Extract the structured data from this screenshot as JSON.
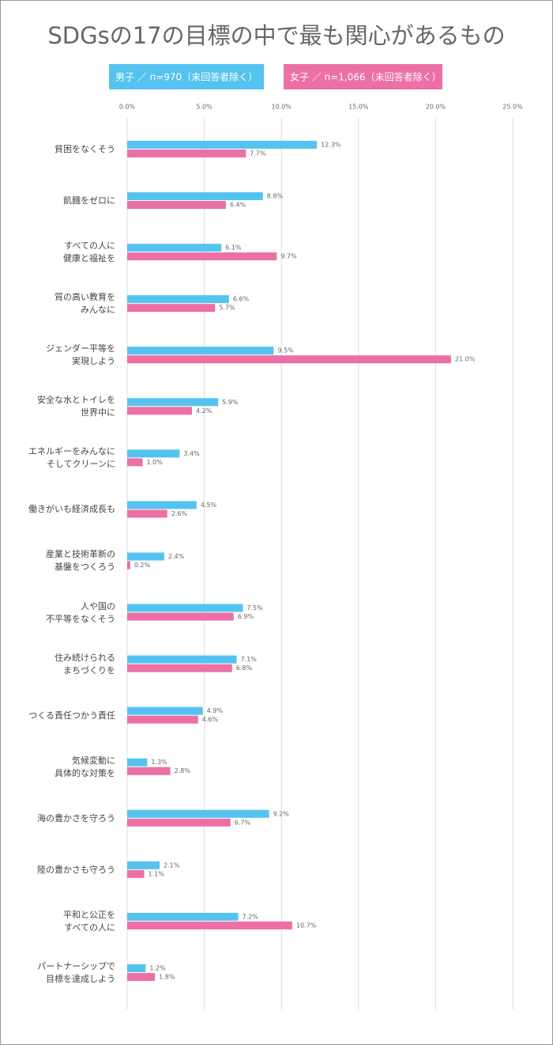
{
  "chart_data": {
    "type": "bar",
    "orientation": "horizontal",
    "title": "SDGsの17の目標の中で最も関心があるもの",
    "categories": [
      "貧困をなくそう",
      "飢餓をゼロに",
      "すべての人に\n健康と福祉を",
      "質の高い教育を\nみんなに",
      "ジェンダー平等を\n実現しよう",
      "安全な水とトイレを\n世界中に",
      "エネルギーをみんなに\nそしてクリーンに",
      "働きがいも経済成長も",
      "産業と技術革新の\n基盤をつくろう",
      "人や国の\n不平等をなくそう",
      "住み続けられる\nまちづくりを",
      "つくる責任つかう責任",
      "気候変動に\n具体的な対策を",
      "海の豊かさを守ろう",
      "陸の豊かさも守ろう",
      "平和と公正を\nすべての人に",
      "パートナーシップで\n目標を達成しよう"
    ],
    "series": [
      {
        "name": "男子 ／ n=970（未回答者除く）",
        "color": "#55c3f0",
        "values": [
          12.3,
          8.8,
          6.1,
          6.6,
          9.5,
          5.9,
          3.4,
          4.5,
          2.4,
          7.5,
          7.1,
          4.9,
          1.3,
          9.2,
          2.1,
          7.2,
          1.2
        ],
        "value_labels": [
          "12.3%",
          "8.8%",
          "6.1%",
          "6.6%",
          "9.5%",
          "5.9%",
          "3.4%",
          "4.5%",
          "2.4%",
          "7.5%",
          "7.1%",
          "4.9%",
          "1.3%",
          "9.2%",
          "2.1%",
          "7.2%",
          "1.2%"
        ]
      },
      {
        "name": "女子 ／ n=1,066（未回答者除く）",
        "color": "#ec6fa5",
        "values": [
          7.7,
          6.4,
          9.7,
          5.7,
          21.0,
          4.2,
          1.0,
          2.6,
          0.2,
          6.9,
          6.8,
          4.6,
          2.8,
          6.7,
          1.1,
          10.7,
          1.8
        ],
        "value_labels": [
          "7.7%",
          "6.4%",
          "9.7%",
          "5.7%",
          "21.0%",
          "4.2%",
          "1.0%",
          "2.6%",
          "0.2%",
          "6.9%",
          "6.8%",
          "4.6%",
          "2.8%",
          "6.7%",
          "1.1%",
          "10.7%",
          "1.8%"
        ]
      }
    ],
    "xlim": [
      0,
      25
    ],
    "xticks": [
      {
        "value": 0,
        "label": "0.0%"
      },
      {
        "value": 5,
        "label": "5.0%"
      },
      {
        "value": 10,
        "label": "10.0%"
      },
      {
        "value": 15,
        "label": "15.0%"
      },
      {
        "value": 20,
        "label": "20.0%"
      },
      {
        "value": 25,
        "label": "25.0%"
      }
    ],
    "grid": true
  }
}
